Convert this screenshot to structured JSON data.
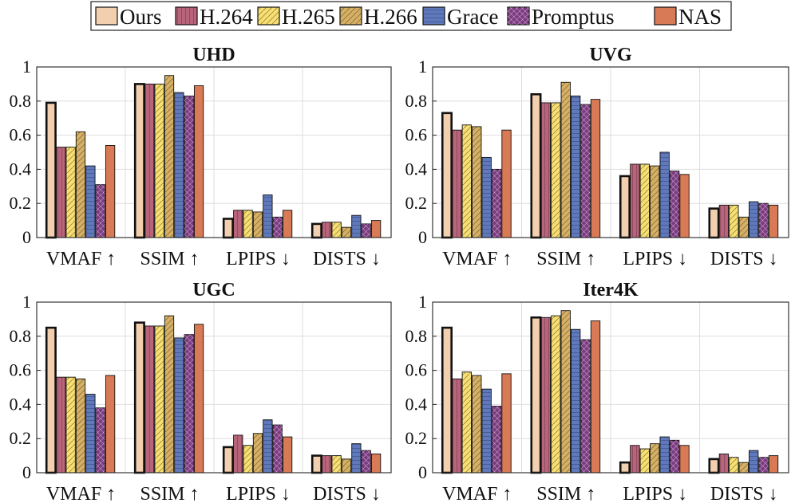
{
  "legend": {
    "entries": [
      {
        "name": "Ours",
        "color": "#f2cfae",
        "hatch": "none"
      },
      {
        "name": "H.264",
        "color": "#b8647a",
        "hatch": "vertical"
      },
      {
        "name": "H.265",
        "color": "#f7df72",
        "hatch": "diagonal"
      },
      {
        "name": "H.266",
        "color": "#d6b065",
        "hatch": "diagonal"
      },
      {
        "name": "Grace",
        "color": "#5f79bc",
        "hatch": "horizontal"
      },
      {
        "name": "Promptus",
        "color": "#7c3b80",
        "hatch": "cross"
      },
      {
        "name": "NAS",
        "color": "#d87a55",
        "hatch": "none"
      }
    ]
  },
  "chart_data": [
    {
      "type": "bar",
      "title": "UHD",
      "categories": [
        "VMAF ↑",
        "SSIM ↑",
        "LPIPS ↓",
        "DISTS ↓"
      ],
      "ylim": [
        0,
        1
      ],
      "yticks": [
        "0",
        "0.2",
        "0.4",
        "0.6",
        "0.8",
        "1"
      ],
      "grid": true,
      "series": [
        {
          "name": "Ours",
          "values": [
            0.79,
            0.9,
            0.11,
            0.08
          ]
        },
        {
          "name": "H.264",
          "values": [
            0.53,
            0.9,
            0.16,
            0.09
          ]
        },
        {
          "name": "H.265",
          "values": [
            0.53,
            0.9,
            0.16,
            0.09
          ]
        },
        {
          "name": "H.266",
          "values": [
            0.62,
            0.95,
            0.15,
            0.06
          ]
        },
        {
          "name": "Grace",
          "values": [
            0.42,
            0.85,
            0.25,
            0.13
          ]
        },
        {
          "name": "Promptus",
          "values": [
            0.31,
            0.83,
            0.12,
            0.08
          ]
        },
        {
          "name": "NAS",
          "values": [
            0.54,
            0.89,
            0.16,
            0.1
          ]
        }
      ]
    },
    {
      "type": "bar",
      "title": "UVG",
      "categories": [
        "VMAF ↑",
        "SSIM ↑",
        "LPIPS ↓",
        "DISTS ↓"
      ],
      "ylim": [
        0,
        1
      ],
      "yticks": [
        "0",
        "0.2",
        "0.4",
        "0.6",
        "0.8",
        "1"
      ],
      "grid": true,
      "series": [
        {
          "name": "Ours",
          "values": [
            0.73,
            0.84,
            0.36,
            0.17
          ]
        },
        {
          "name": "H.264",
          "values": [
            0.63,
            0.79,
            0.43,
            0.19
          ]
        },
        {
          "name": "H.265",
          "values": [
            0.66,
            0.79,
            0.43,
            0.19
          ]
        },
        {
          "name": "H.266",
          "values": [
            0.65,
            0.91,
            0.42,
            0.12
          ]
        },
        {
          "name": "Grace",
          "values": [
            0.47,
            0.83,
            0.5,
            0.21
          ]
        },
        {
          "name": "Promptus",
          "values": [
            0.4,
            0.78,
            0.39,
            0.2
          ]
        },
        {
          "name": "NAS",
          "values": [
            0.63,
            0.81,
            0.37,
            0.19
          ]
        }
      ]
    },
    {
      "type": "bar",
      "title": "UGC",
      "categories": [
        "VMAF ↑",
        "SSIM ↑",
        "LPIPS ↓",
        "DISTS ↓"
      ],
      "ylim": [
        0,
        1
      ],
      "yticks": [
        "0",
        "0.2",
        "0.4",
        "0.6",
        "0.8",
        "1"
      ],
      "grid": true,
      "series": [
        {
          "name": "Ours",
          "values": [
            0.85,
            0.88,
            0.15,
            0.1
          ]
        },
        {
          "name": "H.264",
          "values": [
            0.56,
            0.86,
            0.22,
            0.1
          ]
        },
        {
          "name": "H.265",
          "values": [
            0.56,
            0.86,
            0.16,
            0.1
          ]
        },
        {
          "name": "H.266",
          "values": [
            0.55,
            0.92,
            0.23,
            0.08
          ]
        },
        {
          "name": "Grace",
          "values": [
            0.46,
            0.79,
            0.31,
            0.17
          ]
        },
        {
          "name": "Promptus",
          "values": [
            0.38,
            0.81,
            0.28,
            0.13
          ]
        },
        {
          "name": "NAS",
          "values": [
            0.57,
            0.87,
            0.21,
            0.11
          ]
        }
      ]
    },
    {
      "type": "bar",
      "title": "Iter4K",
      "categories": [
        "VMAF ↑",
        "SSIM ↑",
        "LPIPS ↓",
        "DISTS ↓"
      ],
      "ylim": [
        0,
        1
      ],
      "yticks": [
        "0",
        "0.2",
        "0.4",
        "0.6",
        "0.8",
        "1"
      ],
      "grid": true,
      "series": [
        {
          "name": "Ours",
          "values": [
            0.85,
            0.91,
            0.06,
            0.08
          ]
        },
        {
          "name": "H.264",
          "values": [
            0.55,
            0.91,
            0.16,
            0.11
          ]
        },
        {
          "name": "H.265",
          "values": [
            0.59,
            0.92,
            0.14,
            0.09
          ]
        },
        {
          "name": "H.266",
          "values": [
            0.57,
            0.95,
            0.17,
            0.06
          ]
        },
        {
          "name": "Grace",
          "values": [
            0.49,
            0.84,
            0.21,
            0.13
          ]
        },
        {
          "name": "Promptus",
          "values": [
            0.39,
            0.78,
            0.19,
            0.09
          ]
        },
        {
          "name": "NAS",
          "values": [
            0.58,
            0.89,
            0.16,
            0.1
          ]
        }
      ]
    }
  ]
}
